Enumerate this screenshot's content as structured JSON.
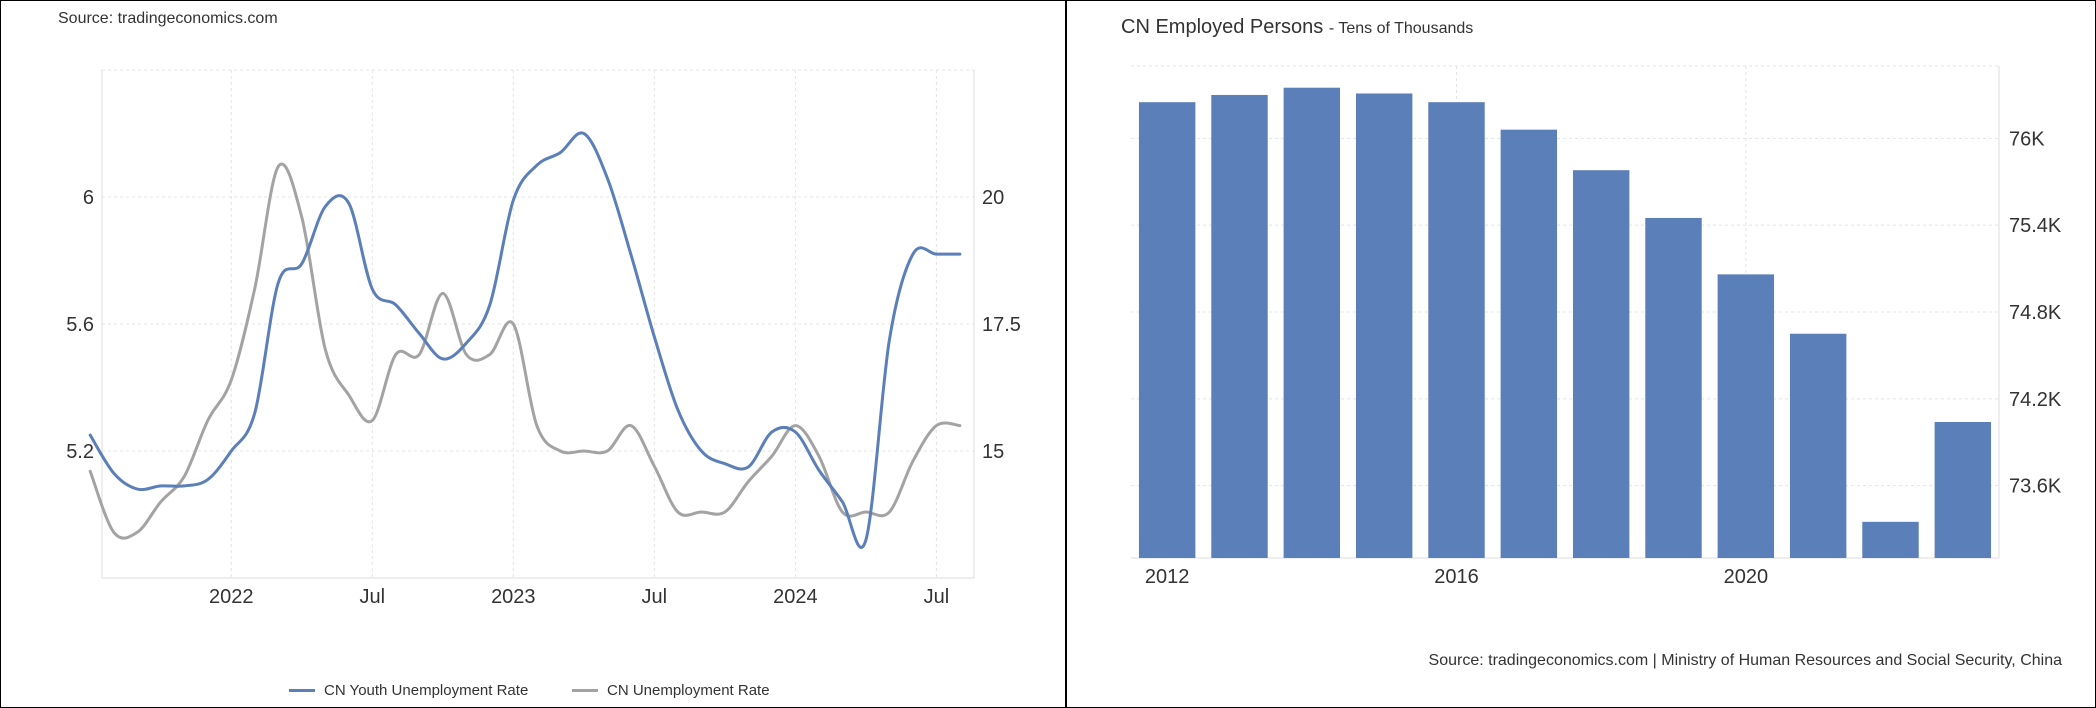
{
  "left": {
    "source": "Source: tradingeconomics.com",
    "legend": [
      {
        "label": "CN Youth Unemployment Rate",
        "color": "#5b7fb8"
      },
      {
        "label": "CN Unemployment Rate",
        "color": "#a3a3a3"
      }
    ]
  },
  "right": {
    "title": "CN Employed Persons",
    "subtitle": "- Tens of Thousands",
    "source": "Source: tradingeconomics.com | Ministry of Human Resources and Social Security, China",
    "bar_color": "#5b7fb8"
  },
  "chart_data": [
    {
      "type": "line",
      "x_tick_labels": [
        "2022",
        "Jul",
        "2023",
        "Jul",
        "2024",
        "Jul"
      ],
      "left_axis_ticks": [
        "6",
        "5.6",
        "5.2"
      ],
      "right_axis_ticks": [
        "20",
        "17.5",
        "15"
      ],
      "xlim": [
        "2021-07",
        "2024-09"
      ],
      "ylim_left": [
        4.8,
        6.4
      ],
      "ylim_right": [
        12.5,
        22.5
      ],
      "grid": true,
      "legend_position": "bottom",
      "series": [
        {
          "name": "CN Youth Unemployment Rate",
          "axis": "left",
          "color": "#5b7fb8",
          "x": [
            "2021-07",
            "2021-08",
            "2021-09",
            "2021-10",
            "2021-11",
            "2021-12",
            "2022-01",
            "2022-02",
            "2022-03",
            "2022-04",
            "2022-05",
            "2022-06",
            "2022-07",
            "2022-08",
            "2022-09",
            "2022-10",
            "2022-11",
            "2022-12",
            "2023-01",
            "2023-02",
            "2023-03",
            "2023-04",
            "2023-05",
            "2023-06",
            "2023-07",
            "2023-08",
            "2023-09",
            "2023-10",
            "2023-11",
            "2023-12",
            "2024-01",
            "2024-02",
            "2024-03",
            "2024-04",
            "2024-05",
            "2024-06",
            "2024-07",
            "2024-08"
          ],
          "values": [
            5.25,
            5.13,
            5.08,
            5.09,
            5.09,
            5.11,
            5.2,
            5.32,
            5.73,
            5.79,
            5.97,
            5.98,
            5.71,
            5.66,
            5.57,
            5.49,
            5.54,
            5.66,
            5.99,
            6.1,
            6.14,
            6.2,
            6.06,
            5.82,
            5.56,
            5.33,
            5.2,
            5.16,
            5.15,
            5.26,
            5.26,
            5.14,
            5.04,
            4.92,
            5.55,
            5.82,
            5.82,
            5.82
          ]
        },
        {
          "name": "CN Unemployment Rate",
          "axis": "right",
          "color": "#a3a3a3",
          "x": [
            "2021-07",
            "2021-08",
            "2021-09",
            "2021-10",
            "2021-11",
            "2021-12",
            "2022-01",
            "2022-02",
            "2022-03",
            "2022-04",
            "2022-05",
            "2022-06",
            "2022-07",
            "2022-08",
            "2022-09",
            "2022-10",
            "2022-11",
            "2022-12",
            "2023-01",
            "2023-02",
            "2023-03",
            "2023-04",
            "2023-05",
            "2023-06",
            "2023-07",
            "2023-08",
            "2023-09",
            "2023-10",
            "2023-11",
            "2023-12",
            "2024-01",
            "2024-02",
            "2024-03",
            "2024-04",
            "2024-05",
            "2024-06",
            "2024-07",
            "2024-08"
          ],
          "values": [
            14.6,
            13.4,
            13.4,
            14.0,
            14.5,
            15.6,
            16.4,
            18.2,
            20.6,
            19.6,
            17.0,
            16.1,
            15.6,
            16.9,
            16.9,
            18.1,
            16.9,
            16.9,
            17.5,
            15.5,
            15.0,
            15.0,
            15.0,
            15.5,
            14.7,
            13.8,
            13.8,
            13.8,
            14.4,
            14.9,
            15.5,
            14.9,
            13.8,
            13.8,
            13.8,
            14.8,
            15.5,
            15.5
          ]
        }
      ]
    },
    {
      "type": "bar",
      "title": "CN Employed Persons",
      "subtitle": "- Tens of Thousands",
      "x_tick_labels": [
        "2012",
        "2016",
        "2020"
      ],
      "y_axis_ticks": [
        "76K",
        "75.4K",
        "74.8K",
        "74.2K",
        "73.6K"
      ],
      "ylim": [
        73100,
        76500
      ],
      "grid": true,
      "categories": [
        "2012",
        "2013",
        "2014",
        "2015",
        "2016",
        "2017",
        "2018",
        "2019",
        "2020",
        "2021",
        "2022",
        "2023"
      ],
      "values": [
        76250,
        76300,
        76350,
        76310,
        76250,
        76060,
        75780,
        75450,
        75060,
        74650,
        73350,
        74040
      ]
    }
  ]
}
